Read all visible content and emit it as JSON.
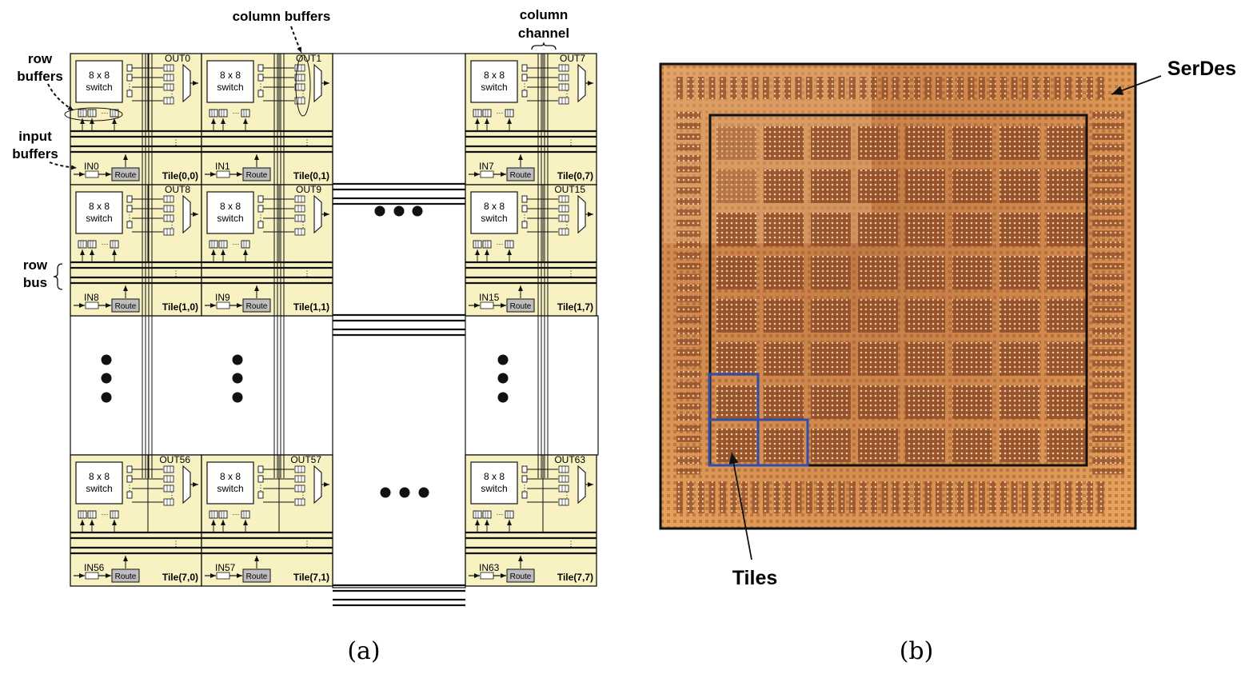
{
  "panel_a": {
    "caption": "(a)",
    "annotations": {
      "row": "row",
      "buffers": "buffers",
      "input": "input",
      "buffers2": "buffers",
      "column_buffers": "column buffers",
      "column": "column",
      "channel": "channel",
      "row_bus_1": "row",
      "row_bus_2": "bus"
    },
    "switch_label_1": "8 x 8",
    "switch_label_2": "switch",
    "route_label": "Route",
    "tiles": [
      {
        "row": 0,
        "col": 0,
        "out": "OUT0",
        "in": "IN0",
        "tile": "Tile(0,0)"
      },
      {
        "row": 0,
        "col": 1,
        "out": "OUT1",
        "in": "IN1",
        "tile": "Tile(0,1)"
      },
      {
        "row": 0,
        "col": 2,
        "out": "OUT7",
        "in": "IN7",
        "tile": "Tile(0,7)"
      },
      {
        "row": 1,
        "col": 0,
        "out": "OUT8",
        "in": "IN8",
        "tile": "Tile(1,0)"
      },
      {
        "row": 1,
        "col": 1,
        "out": "OUT9",
        "in": "IN9",
        "tile": "Tile(1,1)"
      },
      {
        "row": 1,
        "col": 2,
        "out": "OUT15",
        "in": "IN15",
        "tile": "Tile(1,7)"
      },
      {
        "row": 2,
        "col": 0,
        "out": "OUT56",
        "in": "IN56",
        "tile": "Tile(7,0)"
      },
      {
        "row": 2,
        "col": 1,
        "out": "OUT57",
        "in": "IN57",
        "tile": "Tile(7,1)"
      },
      {
        "row": 2,
        "col": 2,
        "out": "OUT63",
        "in": "IN63",
        "tile": "Tile(7,7)"
      }
    ]
  },
  "panel_b": {
    "caption": "(b)",
    "serdes_label": "SerDes",
    "tiles_label": "Tiles",
    "colors": {
      "die": "#c8783c",
      "die_light": "#e0a36a",
      "outline": "#111111",
      "tile_highlight": "#2f4fa8"
    }
  },
  "colors": {
    "tile_fill": "#f8f1c2",
    "route_fill": "#bdbdbd",
    "line": "#111111"
  }
}
